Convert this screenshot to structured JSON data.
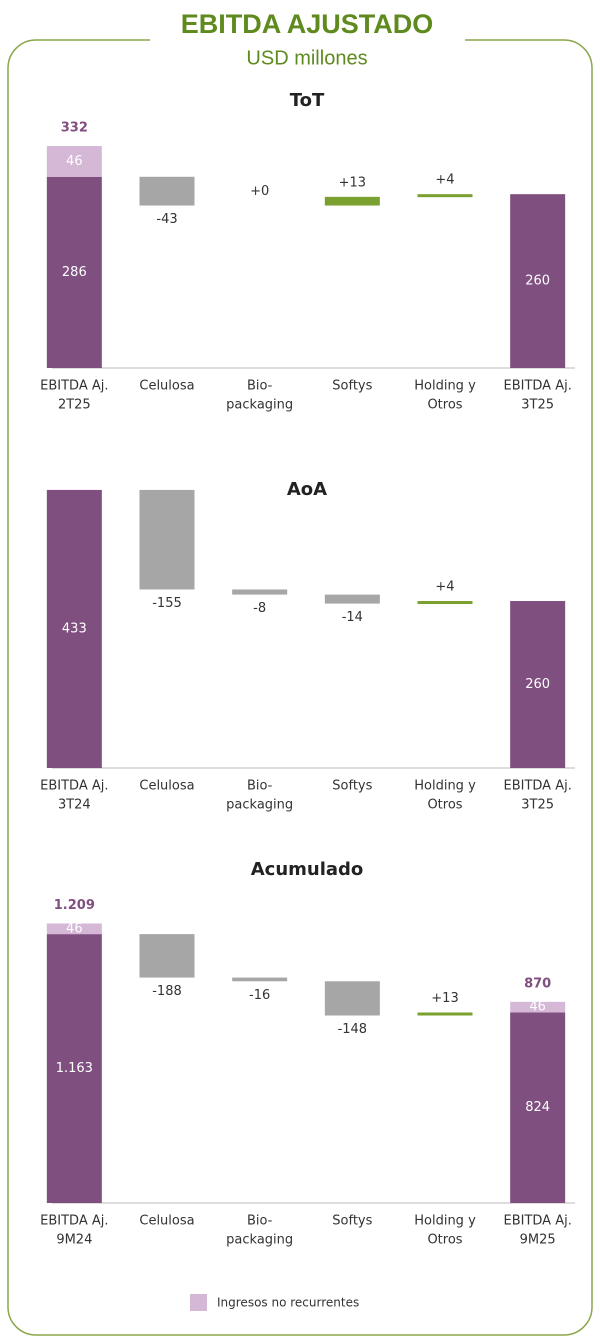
{
  "header": {
    "title": "EBITDA AJUSTADO",
    "subtitle": "USD millones"
  },
  "legend": {
    "name": "Ingresos no recurrentes",
    "color": "#d4b8d6"
  },
  "chart_data": [
    {
      "type": "waterfall",
      "title": "ToT",
      "categories": [
        [
          "EBITDA Aj.",
          "2T25"
        ],
        [
          "Celulosa"
        ],
        [
          "Bio-",
          "packaging"
        ],
        [
          "Softys"
        ],
        [
          "Holding y",
          "Otros"
        ],
        [
          "EBITDA Aj.",
          "3T25"
        ]
      ],
      "values": [
        286,
        -43,
        0,
        13,
        4,
        260
      ],
      "value_labels": [
        "286",
        "-43",
        "+0",
        "+13",
        "+4",
        "260"
      ],
      "nonrecurring": [
        46,
        null,
        null,
        null,
        null,
        null
      ],
      "totals": [
        332,
        null,
        null,
        null,
        null,
        null
      ],
      "ylim": [
        0,
        350
      ],
      "colors": {
        "total": "#7f4f7f",
        "increase": "#7aa12f",
        "decrease": "#a6a6a6"
      }
    },
    {
      "type": "waterfall",
      "title": "AoA",
      "categories": [
        [
          "EBITDA Aj.",
          "3T24"
        ],
        [
          "Celulosa"
        ],
        [
          "Bio-",
          "packaging"
        ],
        [
          "Softys"
        ],
        [
          "Holding y",
          "Otros"
        ],
        [
          "EBITDA Aj.",
          "3T25"
        ]
      ],
      "values": [
        433,
        -155,
        -8,
        -14,
        4,
        260
      ],
      "value_labels": [
        "433",
        "-155",
        "-8",
        "-14",
        "+4",
        "260"
      ],
      "ylim": [
        0,
        450
      ],
      "colors": {
        "total": "#7f4f7f",
        "increase": "#7aa12f",
        "decrease": "#a6a6a6"
      }
    },
    {
      "type": "waterfall",
      "title": "Acumulado",
      "categories": [
        [
          "EBITDA Aj.",
          "9M24"
        ],
        [
          "Celulosa"
        ],
        [
          "Bio-",
          "packaging"
        ],
        [
          "Softys"
        ],
        [
          "Holding y",
          "Otros"
        ],
        [
          "EBITDA Aj.",
          "9M25"
        ]
      ],
      "values": [
        1163,
        -188,
        -16,
        -148,
        13,
        824
      ],
      "value_labels": [
        "1.163",
        "-188",
        "-16",
        "-148",
        "+13",
        "824"
      ],
      "nonrecurring": [
        46,
        null,
        null,
        null,
        null,
        46
      ],
      "totals": [
        1209,
        null,
        null,
        null,
        null,
        870
      ],
      "total_labels": [
        "1.209",
        null,
        null,
        null,
        null,
        "870"
      ],
      "ylim": [
        0,
        1250
      ],
      "colors": {
        "total": "#7f4f7f",
        "increase": "#7aa12f",
        "decrease": "#a6a6a6"
      }
    }
  ]
}
